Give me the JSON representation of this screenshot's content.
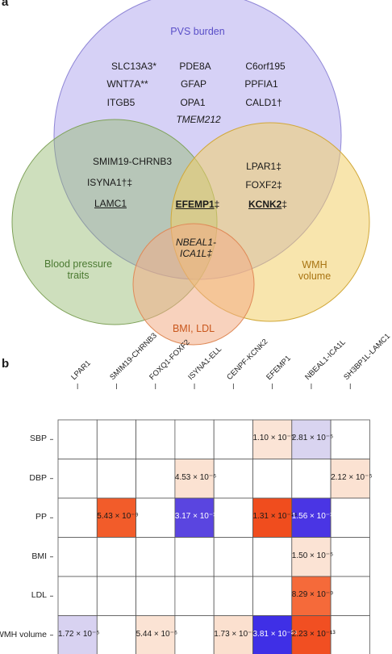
{
  "panel_a": {
    "letter": "a"
  },
  "panel_b": {
    "letter": "b"
  },
  "venn": {
    "sets": {
      "pvs": {
        "label": "PVS burden",
        "color": "#6b5bd6"
      },
      "bp": {
        "label_line1": "Blood pressure",
        "label_line2": "traits",
        "color": "#4b8a3a"
      },
      "wmh": {
        "label_line1": "WMH",
        "label_line2": "volume",
        "color": "#b07d1a"
      },
      "bmi": {
        "label": "BMI, LDL",
        "color": "#d9682b"
      }
    },
    "genes": {
      "slc13a3": "SLC13A3*",
      "pde8a": "PDE8A",
      "c6orf195": "C6orf195",
      "wnt7a": "WNT7A**",
      "gfap": "GFAP",
      "ppfia1": "PPFIA1",
      "itgb5": "ITGB5",
      "opa1": "OPA1",
      "cald1": "CALD1†",
      "tmem212": "TMEM212",
      "smim19": "SMIM19-CHRNB3",
      "isyna1": "ISYNA1†‡",
      "lamc1": "LAMC1",
      "lpar1": "LPAR1‡",
      "foxf2": "FOXF2‡",
      "kcnk2": "KCNK2",
      "kcnk2_mark": "‡",
      "efemp1": "EFEMP1",
      "efemp1_mark": "‡",
      "nbeal1_line1": "NBEAL1-",
      "nbeal1_line2": "ICA1L‡"
    }
  },
  "heatmap": {
    "columns": [
      "LPAR1",
      "SMIM19-CHRNB3",
      "FOXQ1-FOXF2",
      "ISYNA1-ELL",
      "CENPF-KCNK2",
      "EFEMP1",
      "NBEAL1-ICA1L",
      "SH3BP1L-LAMC1"
    ],
    "rows": [
      "SBP",
      "DBP",
      "PP",
      "BMI",
      "LDL",
      "WMH volume"
    ],
    "cells": [
      [
        "",
        "",
        "",
        "",
        "",
        "1.10 × 10⁻⁵",
        "2.81 × 10⁻⁵",
        ""
      ],
      [
        "",
        "",
        "",
        "4.53 × 10⁻⁶",
        "",
        "",
        "",
        "2.12 × 10⁻⁵"
      ],
      [
        "",
        "5.43 × 10⁻⁹",
        "",
        "3.17 × 10⁻¹²",
        "",
        "1.31 × 10⁻¹⁴",
        "1.56 × 10⁻¹⁵",
        ""
      ],
      [
        "",
        "",
        "",
        "",
        "",
        "",
        "1.50 × 10⁻⁵",
        ""
      ],
      [
        "",
        "",
        "",
        "",
        "",
        "",
        "8.29 × 10⁻⁹",
        ""
      ],
      [
        "1.72 × 10⁻⁵",
        "",
        "5.44 × 10⁻⁶",
        "",
        "1.73 × 10⁻⁶",
        "3.81 × 10⁻²⁴",
        "2.23 × 10⁻¹³",
        ""
      ]
    ],
    "colors": [
      [
        "#ffffff",
        "#ffffff",
        "#ffffff",
        "#ffffff",
        "#ffffff",
        "#fbe4d6",
        "#d9d4f0",
        "#ffffff"
      ],
      [
        "#ffffff",
        "#ffffff",
        "#ffffff",
        "#fbe2d2",
        "#ffffff",
        "#ffffff",
        "#ffffff",
        "#fbe2d2"
      ],
      [
        "#ffffff",
        "#f25c2a",
        "#ffffff",
        "#5a45e0",
        "#ffffff",
        "#f04d1e",
        "#4a35e4",
        "#ffffff"
      ],
      [
        "#ffffff",
        "#ffffff",
        "#ffffff",
        "#ffffff",
        "#ffffff",
        "#ffffff",
        "#fbe3d4",
        "#ffffff"
      ],
      [
        "#ffffff",
        "#ffffff",
        "#ffffff",
        "#ffffff",
        "#ffffff",
        "#ffffff",
        "#f56a3a",
        "#ffffff"
      ],
      [
        "#d8d2f1",
        "#ffffff",
        "#fbe3d4",
        "#ffffff",
        "#fbe0cf",
        "#3f2fe6",
        "#f14f22",
        "#ffffff"
      ]
    ]
  }
}
